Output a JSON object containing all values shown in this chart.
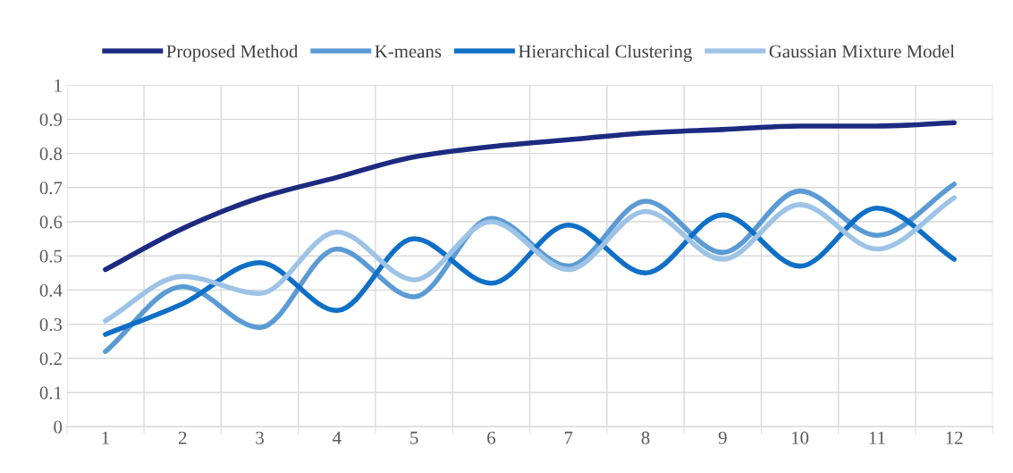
{
  "chart_data": {
    "type": "line",
    "categories": [
      "1",
      "2",
      "3",
      "4",
      "5",
      "6",
      "7",
      "8",
      "9",
      "10",
      "11",
      "12"
    ],
    "series": [
      {
        "name": "Proposed Method",
        "color": "#1c2a80",
        "values": [
          0.46,
          0.58,
          0.67,
          0.73,
          0.79,
          0.82,
          0.84,
          0.86,
          0.87,
          0.88,
          0.88,
          0.89
        ]
      },
      {
        "name": "K-means",
        "color": "#5b9bd5",
        "values": [
          0.22,
          0.41,
          0.29,
          0.52,
          0.38,
          0.61,
          0.47,
          0.66,
          0.51,
          0.69,
          0.56,
          0.71
        ]
      },
      {
        "name": "Hierarchical Clustering",
        "color": "#0f6fc6",
        "values": [
          0.27,
          0.36,
          0.48,
          0.34,
          0.55,
          0.42,
          0.59,
          0.45,
          0.62,
          0.47,
          0.64,
          0.49
        ]
      },
      {
        "name": "Gaussian Mixture Model",
        "color": "#9dc3e6",
        "values": [
          0.31,
          0.44,
          0.39,
          0.57,
          0.43,
          0.6,
          0.46,
          0.63,
          0.49,
          0.65,
          0.52,
          0.67
        ]
      }
    ],
    "ylim": [
      0,
      1
    ],
    "yticks": [
      0,
      0.1,
      0.2,
      0.3,
      0.4,
      0.5,
      0.6,
      0.7,
      0.8,
      0.9,
      1
    ],
    "grid": true,
    "legend": "top",
    "marker": "none",
    "line_style": "solid"
  }
}
